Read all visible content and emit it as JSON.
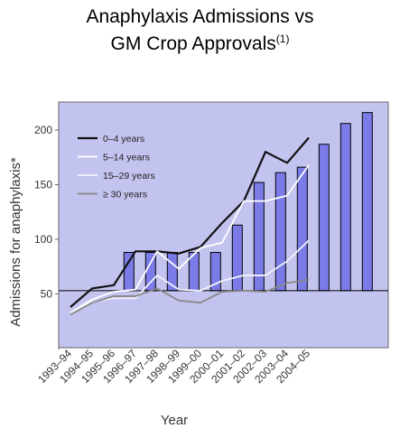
{
  "title": {
    "line1": "Anaphylaxis Admissions vs",
    "line2": "GM Crop Approvals",
    "superscript": "(1)"
  },
  "chart_data": {
    "type": "line",
    "categories": [
      "1993–94",
      "1994–95",
      "1995–96",
      "1996–97",
      "1997–98",
      "1998–99",
      "1999–00",
      "2000–01",
      "2001–02",
      "2002–03",
      "2003–04",
      "2004–05"
    ],
    "xlabel": "Year",
    "ylabel": "Admissions for anaphylaxis*",
    "ylim": [
      0,
      222
    ],
    "yticks": [
      50,
      100,
      150,
      200
    ],
    "reference_line": 53,
    "legend_position": "top-left",
    "series": [
      {
        "name": "0–4 years",
        "color": "#111111",
        "values": [
          38,
          55,
          58,
          89,
          89,
          87,
          93,
          115,
          135,
          180,
          170,
          193
        ]
      },
      {
        "name": "5–14 years",
        "color": "#ffffff",
        "values": [
          33,
          45,
          52,
          54,
          89,
          73,
          92,
          97,
          135,
          135,
          140,
          168
        ]
      },
      {
        "name": "15–29 years",
        "color": "#f2f2fc",
        "values": [
          33,
          43,
          46,
          46,
          67,
          54,
          53,
          62,
          67,
          67,
          80,
          99
        ]
      },
      {
        "name": "≥ 30 years",
        "color": "#888888",
        "values": [
          31,
          42,
          48,
          48,
          55,
          44,
          42,
          52,
          53,
          52,
          60,
          63
        ]
      }
    ],
    "bars": {
      "note": "GM crop approval bars, drawn from the baseline line upward",
      "x_index": [
        2.7,
        3.7,
        4.7,
        5.7,
        6.7,
        7.7,
        8.7,
        9.7,
        10.7,
        11.7,
        12.7,
        13.7
      ],
      "top": [
        88,
        88,
        88,
        88,
        88,
        113,
        152,
        161,
        166,
        187,
        206,
        216
      ]
    }
  }
}
